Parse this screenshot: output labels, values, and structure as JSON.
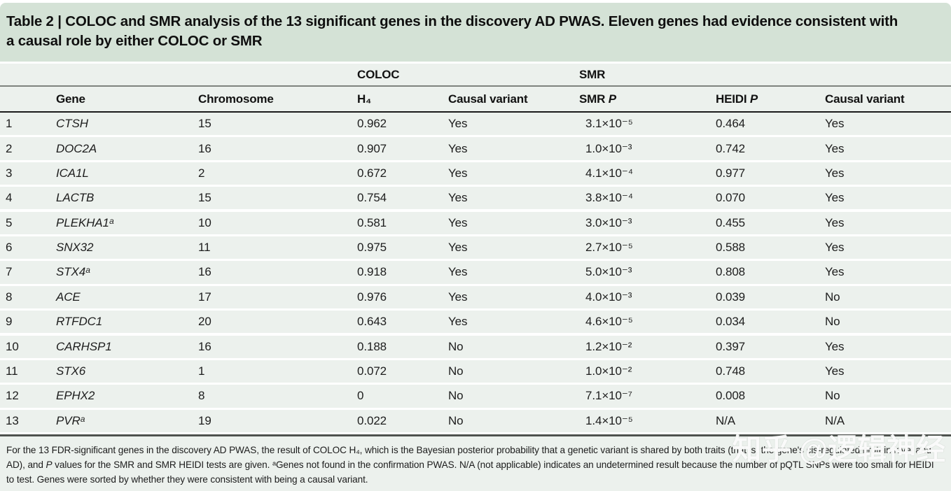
{
  "title": {
    "line1": "Table 2 | COLOC and SMR analysis of the 13 significant genes in the discovery AD PWAS. Eleven genes had evidence consistent with",
    "line2": "a causal role by either COLOC or SMR"
  },
  "table": {
    "group_headers": {
      "coloc": "COLOC",
      "smr": "SMR"
    },
    "columns": {
      "gene": "Gene",
      "chromosome": "Chromosome",
      "h4": "H₄",
      "causal_variant_coloc": "Causal variant",
      "smr_p_prefix": "SMR ",
      "heidi_p_prefix": "HEIDI ",
      "p_italic": "P",
      "causal_variant_smr": "Causal variant"
    },
    "rows": [
      {
        "num": "1",
        "gene": "CTSH",
        "chromosome": "15",
        "h4": "0.962",
        "coloc_causal": "Yes",
        "smr_p": "3.1×10⁻⁵",
        "heidi_p": "0.464",
        "smr_causal": "Yes"
      },
      {
        "num": "2",
        "gene": "DOC2A",
        "chromosome": "16",
        "h4": "0.907",
        "coloc_causal": "Yes",
        "smr_p": "1.0×10⁻³",
        "heidi_p": "0.742",
        "smr_causal": "Yes"
      },
      {
        "num": "3",
        "gene": "ICA1L",
        "chromosome": "2",
        "h4": "0.672",
        "coloc_causal": "Yes",
        "smr_p": "4.1×10⁻⁴",
        "heidi_p": "0.977",
        "smr_causal": "Yes"
      },
      {
        "num": "4",
        "gene": "LACTB",
        "chromosome": "15",
        "h4": "0.754",
        "coloc_causal": "Yes",
        "smr_p": "3.8×10⁻⁴",
        "heidi_p": "0.070",
        "smr_causal": "Yes"
      },
      {
        "num": "5",
        "gene": "PLEKHA1ᵃ",
        "chromosome": "10",
        "h4": "0.581",
        "coloc_causal": "Yes",
        "smr_p": "3.0×10⁻³",
        "heidi_p": "0.455",
        "smr_causal": "Yes"
      },
      {
        "num": "6",
        "gene": "SNX32",
        "chromosome": "11",
        "h4": "0.975",
        "coloc_causal": "Yes",
        "smr_p": "2.7×10⁻⁵",
        "heidi_p": "0.588",
        "smr_causal": "Yes"
      },
      {
        "num": "7",
        "gene": "STX4ᵃ",
        "chromosome": "16",
        "h4": "0.918",
        "coloc_causal": "Yes",
        "smr_p": "5.0×10⁻³",
        "heidi_p": "0.808",
        "smr_causal": "Yes"
      },
      {
        "num": "8",
        "gene": "ACE",
        "chromosome": "17",
        "h4": "0.976",
        "coloc_causal": "Yes",
        "smr_p": "4.0×10⁻³",
        "heidi_p": "0.039",
        "smr_causal": "No"
      },
      {
        "num": "9",
        "gene": "RTFDC1",
        "chromosome": "20",
        "h4": "0.643",
        "coloc_causal": "Yes",
        "smr_p": "4.6×10⁻⁵",
        "heidi_p": "0.034",
        "smr_causal": "No"
      },
      {
        "num": "10",
        "gene": "CARHSP1",
        "chromosome": "16",
        "h4": "0.188",
        "coloc_causal": "No",
        "smr_p": "1.2×10⁻²",
        "heidi_p": "0.397",
        "smr_causal": "Yes"
      },
      {
        "num": "11",
        "gene": "STX6",
        "chromosome": "1",
        "h4": "0.072",
        "coloc_causal": "No",
        "smr_p": "1.0×10⁻²",
        "heidi_p": "0.748",
        "smr_causal": "Yes"
      },
      {
        "num": "12",
        "gene": "EPHX2",
        "chromosome": "8",
        "h4": "0",
        "coloc_causal": "No",
        "smr_p": "7.1×10⁻⁷",
        "heidi_p": "0.008",
        "smr_causal": "No"
      },
      {
        "num": "13",
        "gene": "PVRᵃ",
        "chromosome": "19",
        "h4": "0.022",
        "coloc_causal": "No",
        "smr_p": "1.4×10⁻⁵",
        "heidi_p": "N/A",
        "smr_causal": "N/A"
      }
    ]
  },
  "footnote": {
    "parts": [
      {
        "text": "For the 13 FDR-significant genes in the discovery AD PWAS, the result of COLOC H₄, which is the Bayesian posterior probability that a genetic variant is shared by both traits (that is, the gene's cis-regulated protein level and AD), and "
      },
      {
        "text": "P"
      },
      {
        "text": " values for the SMR and SMR HEIDI tests are given. ᵃGenes not found in the confirmation PWAS. N/A (not applicable) indicates an undetermined result because the number of pQTL SNPs were too small for HEIDI to test. Genes were sorted by whether they were consistent with being a causal variant."
      }
    ]
  },
  "watermark": {
    "text": "知乎 @逻辑神经"
  },
  "colors": {
    "title_band_bg": "#d4e2d6",
    "table_band_bg": "#ecf1ed",
    "gray_rule": "#7e837e",
    "black_rule": "#1b1b1b",
    "bottom_rule": "#4f534f",
    "watermark": "#ffffff"
  }
}
